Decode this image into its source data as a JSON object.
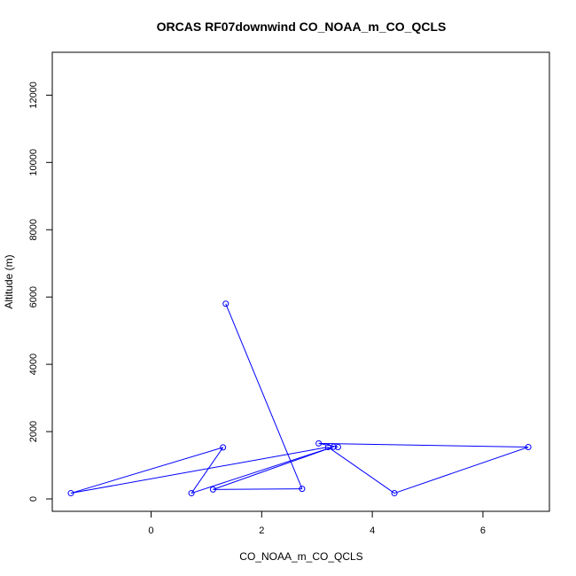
{
  "chart_data": {
    "type": "line",
    "title": "ORCAS RF07downwind CO_NOAA_m_CO_QCLS",
    "xlabel": "CO_NOAA_m_CO_QCLS",
    "ylabel": "Altitude (m)",
    "xlim": [
      -1.45,
      6.85
    ],
    "ylim": [
      0,
      12800
    ],
    "x_ticks": [
      0,
      2,
      4,
      6
    ],
    "y_ticks": [
      0,
      2000,
      4000,
      6000,
      8000,
      10000,
      12000
    ],
    "grid": false,
    "series": [
      {
        "color": "#0000ff",
        "marker": "open-circle",
        "points": [
          {
            "x": 1.35,
            "y": 5800
          },
          {
            "x": 2.73,
            "y": 300
          },
          {
            "x": 1.12,
            "y": 280
          },
          {
            "x": 3.3,
            "y": 1550
          },
          {
            "x": 0.73,
            "y": 170
          },
          {
            "x": 1.3,
            "y": 1530
          },
          {
            "x": -1.45,
            "y": 170
          },
          {
            "x": 3.2,
            "y": 1540
          },
          {
            "x": 4.4,
            "y": 170
          },
          {
            "x": 6.82,
            "y": 1540
          },
          {
            "x": 3.03,
            "y": 1650
          },
          {
            "x": 3.38,
            "y": 1540
          }
        ]
      }
    ]
  }
}
